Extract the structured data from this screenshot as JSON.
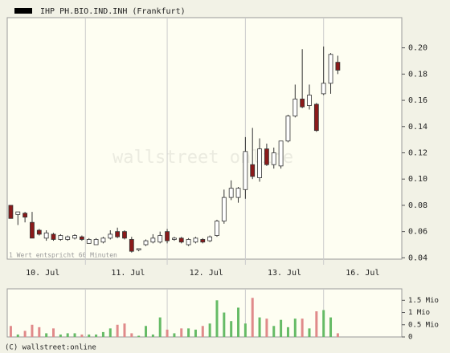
{
  "chart_data": [
    {
      "type": "candlestick",
      "title": "IHP PH.BIO.IND.INH (Frankfurt)",
      "legend_color": "#000000",
      "annotation": "1 Wert entspricht 60 Minuten",
      "watermark": "wallstreet online",
      "up_color": "#ffffff",
      "down_color": "#8b1a1a",
      "xlim": [
        -0.5,
        55
      ],
      "xticks": [
        {
          "value": 4.5,
          "label": "10. Jul"
        },
        {
          "value": 16.5,
          "label": "11. Jul"
        },
        {
          "value": 27.5,
          "label": "12. Jul"
        },
        {
          "value": 38.5,
          "label": "13. Jul"
        },
        {
          "value": 49.5,
          "label": "16. Jul"
        }
      ],
      "ylim": [
        0.039,
        0.223
      ],
      "yticks": [
        0.04,
        0.06,
        0.08,
        {
          "value": 0.1,
          "label": "0.10"
        },
        0.12,
        0.14,
        0.16,
        0.18,
        {
          "value": 0.2,
          "label": "0.20"
        }
      ],
      "open": [
        0.08,
        0.073,
        0.074,
        0.067,
        0.061,
        0.055,
        0.058,
        0.054,
        0.054,
        0.055,
        0.056,
        0.051,
        0.05,
        0.052,
        0.055,
        0.06,
        0.06,
        0.054,
        0.046,
        0.05,
        0.052,
        0.052,
        0.06,
        0.054,
        0.055,
        0.05,
        0.052,
        0.054,
        0.053,
        0.057,
        0.068,
        0.086,
        0.086,
        0.092,
        0.111,
        0.101,
        0.123,
        0.111,
        0.11,
        0.129,
        0.148,
        0.161,
        0.156,
        0.157,
        0.165,
        0.173,
        0.189
      ],
      "high": [
        0.08,
        0.075,
        0.075,
        0.075,
        0.062,
        0.061,
        0.059,
        0.058,
        0.057,
        0.058,
        0.057,
        0.055,
        0.055,
        0.056,
        0.061,
        0.063,
        0.061,
        0.056,
        0.047,
        0.054,
        0.058,
        0.06,
        0.062,
        0.056,
        0.056,
        0.055,
        0.056,
        0.055,
        0.057,
        0.069,
        0.092,
        0.099,
        0.094,
        0.132,
        0.139,
        0.131,
        0.127,
        0.124,
        0.129,
        0.149,
        0.172,
        0.199,
        0.172,
        0.158,
        0.201,
        0.196,
        0.194
      ],
      "low": [
        0.07,
        0.065,
        0.067,
        0.055,
        0.057,
        0.053,
        0.053,
        0.053,
        0.053,
        0.054,
        0.053,
        0.051,
        0.05,
        0.051,
        0.054,
        0.055,
        0.054,
        0.044,
        0.045,
        0.049,
        0.051,
        0.051,
        0.051,
        0.053,
        0.051,
        0.049,
        0.051,
        0.051,
        0.052,
        0.056,
        0.066,
        0.084,
        0.082,
        0.085,
        0.1,
        0.098,
        0.11,
        0.108,
        0.108,
        0.128,
        0.147,
        0.154,
        0.153,
        0.136,
        0.164,
        0.165,
        0.18
      ],
      "close": [
        0.07,
        0.075,
        0.071,
        0.055,
        0.058,
        0.059,
        0.054,
        0.057,
        0.056,
        0.057,
        0.054,
        0.054,
        0.054,
        0.055,
        0.058,
        0.056,
        0.055,
        0.045,
        0.047,
        0.053,
        0.055,
        0.057,
        0.053,
        0.055,
        0.052,
        0.054,
        0.055,
        0.052,
        0.056,
        0.068,
        0.086,
        0.093,
        0.093,
        0.121,
        0.102,
        0.123,
        0.111,
        0.12,
        0.129,
        0.148,
        0.161,
        0.155,
        0.164,
        0.137,
        0.173,
        0.195,
        0.183
      ]
    },
    {
      "type": "volume",
      "up_color": "#66bb66",
      "down_color": "#e08a8a",
      "ylim": [
        0,
        1.97
      ],
      "yticks": [
        0,
        {
          "value": 0.5,
          "label": "0.5 Mio"
        },
        {
          "value": 1,
          "label": "1 Mio"
        },
        {
          "value": 1.5,
          "label": "1.5 Mio"
        }
      ],
      "values": [
        0.45,
        0.1,
        0.25,
        0.5,
        0.4,
        0.15,
        0.35,
        0.1,
        0.15,
        0.15,
        0.1,
        0.1,
        0.1,
        0.2,
        0.35,
        0.5,
        0.55,
        0.15,
        0.05,
        0.45,
        0.1,
        0.8,
        0.3,
        0.15,
        0.35,
        0.35,
        0.3,
        0.45,
        0.55,
        1.5,
        1.0,
        0.65,
        1.2,
        0.55,
        1.6,
        0.8,
        0.75,
        0.45,
        0.7,
        0.4,
        0.75,
        0.75,
        0.35,
        1.05,
        1.1,
        0.8,
        0.15
      ],
      "footer": "(C) wallstreet:online"
    }
  ]
}
